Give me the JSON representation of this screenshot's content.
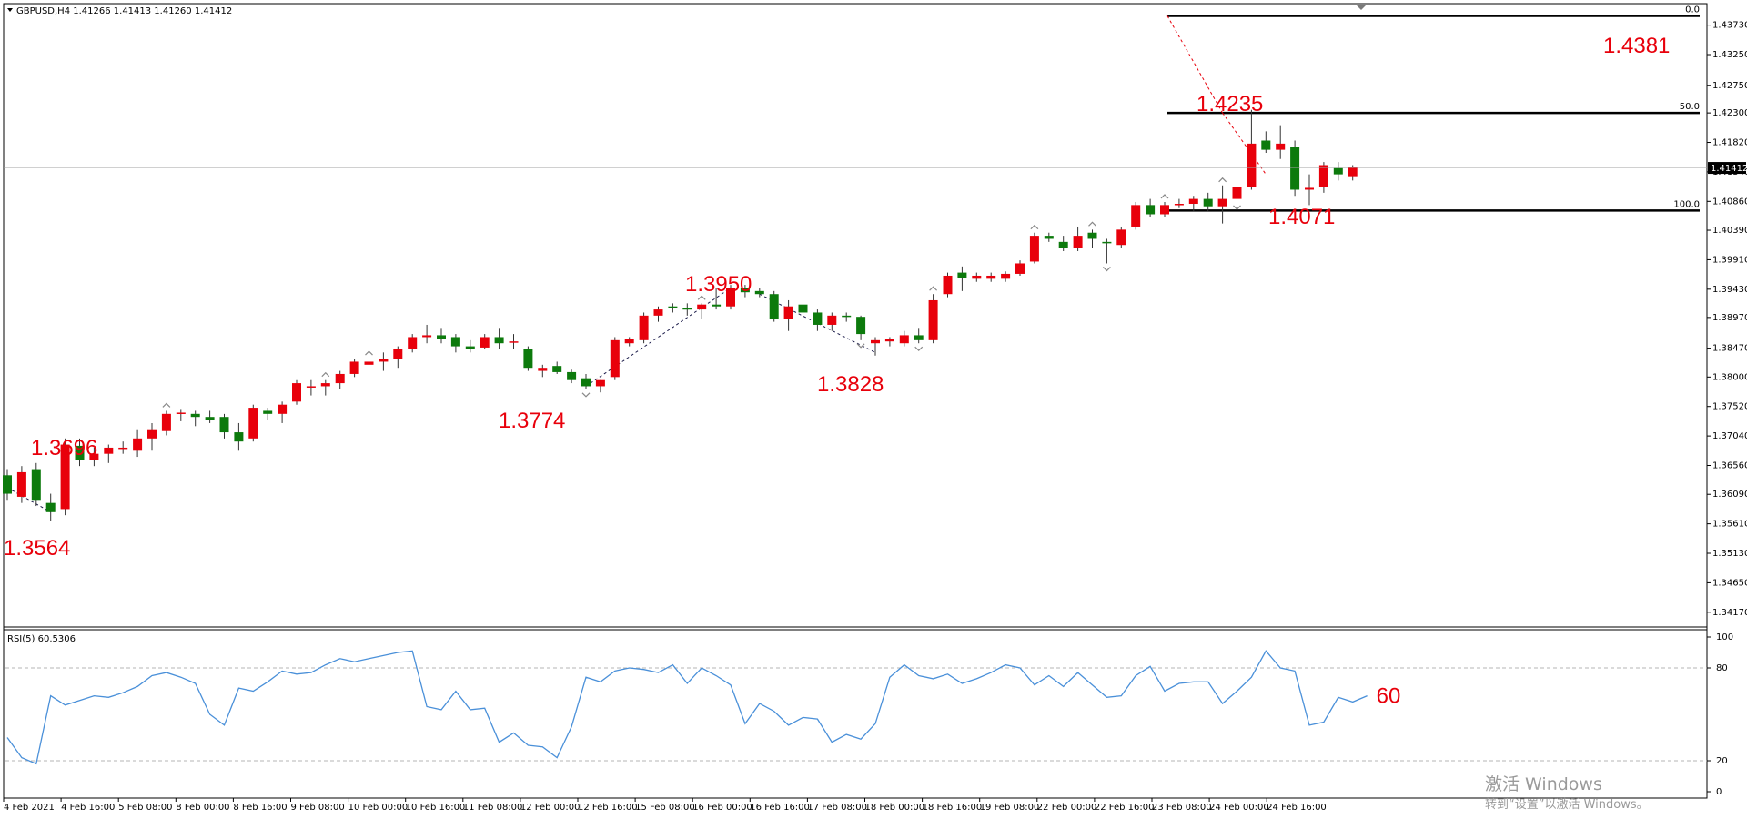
{
  "header": {
    "symbol_title": "GBPUSD,H4  1.41266 1.41413 1.41260 1.41412",
    "rsi_title": "RSI(5) 60.5306"
  },
  "watermark": {
    "line1": "激活 Windows",
    "line2": "转到“设置”以激活 Windows。"
  },
  "colors": {
    "bull": "#e8000b",
    "bear": "#0c7a0c",
    "label": "#e8000b",
    "rsi_line": "#4a90d9",
    "level_line": "#000000"
  },
  "chart_data": [
    {
      "type": "candlestick",
      "symbol": "GBPUSD",
      "timeframe": "H4",
      "ylim": [
        1.3393,
        1.4408
      ],
      "y_ticks": [
        "1.43730",
        "1.43250",
        "1.42750",
        "1.42300",
        "1.41820",
        "1.41340",
        "1.40860",
        "1.40390",
        "1.39910",
        "1.39430",
        "1.38970",
        "1.38470",
        "1.38000",
        "1.37520",
        "1.37040",
        "1.36560",
        "1.36090",
        "1.35610",
        "1.35130",
        "1.34650",
        "1.34170"
      ],
      "x_ticks": [
        "4 Feb 2021",
        "4 Feb 16:00",
        "5 Feb 08:00",
        "8 Feb 00:00",
        "8 Feb 16:00",
        "9 Feb 08:00",
        "10 Feb 00:00",
        "10 Feb 16:00",
        "11 Feb 08:00",
        "12 Feb 00:00",
        "12 Feb 16:00",
        "15 Feb 08:00",
        "16 Feb 00:00",
        "16 Feb 16:00",
        "17 Feb 08:00",
        "18 Feb 00:00",
        "18 Feb 16:00",
        "19 Feb 08:00",
        "22 Feb 00:00",
        "22 Feb 16:00",
        "23 Feb 08:00",
        "24 Feb 00:00",
        "24 Feb 16:00"
      ],
      "current_price": "1.41412",
      "candles": [
        [
          1.364,
          1.365,
          1.36,
          1.361
        ],
        [
          1.3605,
          1.3655,
          1.3595,
          1.3645
        ],
        [
          1.365,
          1.366,
          1.359,
          1.36
        ],
        [
          1.3595,
          1.361,
          1.3565,
          1.358
        ],
        [
          1.3585,
          1.37,
          1.3575,
          1.369
        ],
        [
          1.3688,
          1.37,
          1.3655,
          1.3665
        ],
        [
          1.3665,
          1.3685,
          1.3655,
          1.3675
        ],
        [
          1.3675,
          1.369,
          1.366,
          1.3685
        ],
        [
          1.3685,
          1.3695,
          1.3675,
          1.3685
        ],
        [
          1.368,
          1.3715,
          1.367,
          1.37
        ],
        [
          1.37,
          1.3725,
          1.368,
          1.3715
        ],
        [
          1.3712,
          1.3745,
          1.3705,
          1.374
        ],
        [
          1.374,
          1.3748,
          1.3728,
          1.3742
        ],
        [
          1.374,
          1.3745,
          1.372,
          1.3735
        ],
        [
          1.3735,
          1.3745,
          1.3725,
          1.373
        ],
        [
          1.3735,
          1.374,
          1.37,
          1.371
        ],
        [
          1.371,
          1.3725,
          1.368,
          1.3695
        ],
        [
          1.37,
          1.3755,
          1.3695,
          1.375
        ],
        [
          1.3745,
          1.375,
          1.373,
          1.374
        ],
        [
          1.374,
          1.376,
          1.3725,
          1.3755
        ],
        [
          1.376,
          1.3795,
          1.3755,
          1.379
        ],
        [
          1.3785,
          1.3795,
          1.377,
          1.3785
        ],
        [
          1.3785,
          1.3795,
          1.377,
          1.379
        ],
        [
          1.379,
          1.381,
          1.378,
          1.3805
        ],
        [
          1.3805,
          1.383,
          1.38,
          1.3825
        ],
        [
          1.382,
          1.383,
          1.381,
          1.3825
        ],
        [
          1.3825,
          1.384,
          1.381,
          1.383
        ],
        [
          1.383,
          1.385,
          1.3815,
          1.3845
        ],
        [
          1.3845,
          1.387,
          1.384,
          1.3865
        ],
        [
          1.3865,
          1.3885,
          1.3855,
          1.3868
        ],
        [
          1.3868,
          1.388,
          1.3855,
          1.3862
        ],
        [
          1.3865,
          1.387,
          1.384,
          1.385
        ],
        [
          1.385,
          1.386,
          1.384,
          1.3845
        ],
        [
          1.3848,
          1.387,
          1.3845,
          1.3865
        ],
        [
          1.3865,
          1.388,
          1.3845,
          1.3855
        ],
        [
          1.3858,
          1.387,
          1.3845,
          1.3858
        ],
        [
          1.3845,
          1.385,
          1.381,
          1.3815
        ],
        [
          1.381,
          1.382,
          1.38,
          1.3815
        ],
        [
          1.3818,
          1.3825,
          1.3805,
          1.3808
        ],
        [
          1.3808,
          1.3812,
          1.379,
          1.3795
        ],
        [
          1.3798,
          1.3805,
          1.378,
          1.3785
        ],
        [
          1.3785,
          1.3795,
          1.3775,
          1.3795
        ],
        [
          1.38,
          1.3865,
          1.3795,
          1.386
        ],
        [
          1.3855,
          1.3865,
          1.385,
          1.3862
        ],
        [
          1.386,
          1.3905,
          1.3855,
          1.39
        ],
        [
          1.39,
          1.3915,
          1.389,
          1.391
        ],
        [
          1.3915,
          1.392,
          1.3905,
          1.3912
        ],
        [
          1.3912,
          1.392,
          1.39,
          1.391
        ],
        [
          1.391,
          1.392,
          1.3895,
          1.3918
        ],
        [
          1.3918,
          1.3945,
          1.391,
          1.3915
        ],
        [
          1.3915,
          1.395,
          1.391,
          1.3945
        ],
        [
          1.3945,
          1.395,
          1.393,
          1.3938
        ],
        [
          1.394,
          1.3945,
          1.393,
          1.3935
        ],
        [
          1.3935,
          1.394,
          1.389,
          1.3895
        ],
        [
          1.3895,
          1.3925,
          1.3875,
          1.3915
        ],
        [
          1.3918,
          1.3925,
          1.39,
          1.3905
        ],
        [
          1.3905,
          1.391,
          1.3875,
          1.3885
        ],
        [
          1.3885,
          1.3905,
          1.3875,
          1.39
        ],
        [
          1.39,
          1.3905,
          1.389,
          1.3898
        ],
        [
          1.3898,
          1.39,
          1.386,
          1.387
        ],
        [
          1.3855,
          1.3865,
          1.3835,
          1.386
        ],
        [
          1.3858,
          1.3865,
          1.385,
          1.3862
        ],
        [
          1.3855,
          1.3875,
          1.385,
          1.3868
        ],
        [
          1.3868,
          1.388,
          1.3855,
          1.386
        ],
        [
          1.386,
          1.3935,
          1.3855,
          1.3925
        ],
        [
          1.3935,
          1.397,
          1.393,
          1.3965
        ],
        [
          1.397,
          1.398,
          1.394,
          1.3962
        ],
        [
          1.396,
          1.397,
          1.3955,
          1.3965
        ],
        [
          1.396,
          1.397,
          1.3955,
          1.3965
        ],
        [
          1.396,
          1.3972,
          1.3955,
          1.3968
        ],
        [
          1.3968,
          1.399,
          1.3965,
          1.3985
        ],
        [
          1.3988,
          1.4035,
          1.3985,
          1.403
        ],
        [
          1.403,
          1.4035,
          1.402,
          1.4025
        ],
        [
          1.402,
          1.403,
          1.4005,
          1.401
        ],
        [
          1.401,
          1.4045,
          1.4005,
          1.403
        ],
        [
          1.4035,
          1.404,
          1.401,
          1.4025
        ],
        [
          1.402,
          1.4025,
          1.3985,
          1.4018
        ],
        [
          1.4015,
          1.4045,
          1.401,
          1.404
        ],
        [
          1.4045,
          1.4085,
          1.404,
          1.408
        ],
        [
          1.408,
          1.409,
          1.406,
          1.4065
        ],
        [
          1.4065,
          1.4085,
          1.406,
          1.408
        ],
        [
          1.408,
          1.409,
          1.4075,
          1.4082
        ],
        [
          1.4082,
          1.4095,
          1.407,
          1.409
        ],
        [
          1.409,
          1.41,
          1.407,
          1.4078
        ],
        [
          1.4078,
          1.4112,
          1.405,
          1.409
        ],
        [
          1.409,
          1.4125,
          1.4085,
          1.411
        ],
        [
          1.411,
          1.4235,
          1.4105,
          1.418
        ],
        [
          1.4185,
          1.42,
          1.4165,
          1.417
        ],
        [
          1.417,
          1.421,
          1.4155,
          1.418
        ],
        [
          1.4175,
          1.4185,
          1.4095,
          1.4105
        ],
        [
          1.4105,
          1.413,
          1.408,
          1.4108
        ],
        [
          1.411,
          1.415,
          1.41,
          1.4145
        ],
        [
          1.414,
          1.415,
          1.412,
          1.413
        ],
        [
          1.4127,
          1.4145,
          1.412,
          1.4141
        ]
      ],
      "swing_labels": [
        "1.3564",
        "1.3696",
        "1.3774",
        "1.3950",
        "1.3828",
        "1.4235",
        "1.4071",
        "1.4381"
      ],
      "fib_levels": [
        {
          "label": "0.0",
          "price": 1.4388
        },
        {
          "label": "50.0",
          "price": 1.423
        },
        {
          "label": "100.0",
          "price": 1.4071
        }
      ]
    },
    {
      "type": "line",
      "name": "RSI(5)",
      "ylim": [
        0,
        100
      ],
      "y_ticks": [
        "100",
        "80",
        "20",
        "0"
      ],
      "levels": [
        80,
        20
      ],
      "current_label": "60",
      "values": [
        35,
        22,
        18,
        62,
        56,
        59,
        62,
        61,
        64,
        68,
        75,
        77,
        74,
        70,
        50,
        43,
        67,
        65,
        71,
        78,
        76,
        77,
        82,
        86,
        84,
        86,
        88,
        90,
        91,
        55,
        53,
        65,
        53,
        54,
        32,
        38,
        30,
        29,
        22,
        42,
        74,
        71,
        78,
        80,
        79,
        77,
        82,
        70,
        80,
        75,
        69,
        44,
        57,
        52,
        43,
        48,
        47,
        32,
        37,
        34,
        44,
        74,
        82,
        75,
        73,
        76,
        70,
        73,
        77,
        82,
        80,
        69,
        75,
        68,
        77,
        69,
        61,
        62,
        75,
        81,
        65,
        70,
        71,
        71,
        57,
        65,
        74,
        91,
        80,
        78,
        43,
        45,
        61,
        58,
        62
      ]
    }
  ]
}
